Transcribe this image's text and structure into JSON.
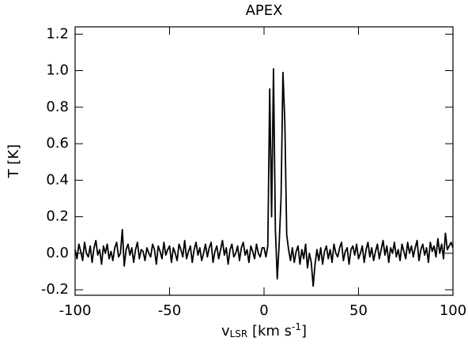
{
  "chart_data": {
    "type": "line",
    "title": "APEX",
    "ylabel": "T [K]",
    "xlabel": [
      "v",
      "LSR",
      " [km s",
      "-1",
      "]"
    ],
    "color": "#000000",
    "xlim": [
      -100,
      100
    ],
    "ylim": [
      -0.23,
      1.24
    ],
    "xticks": [
      -100,
      -50,
      0,
      50,
      100
    ],
    "yticks": [
      {
        "value": -0.2,
        "label": "-0.2"
      },
      {
        "value": 0,
        "label": "0.0"
      },
      {
        "value": 0.2,
        "label": "0.2"
      },
      {
        "value": 0.4,
        "label": "0.4"
      },
      {
        "value": 0.6,
        "label": "0.6"
      },
      {
        "value": 0.8,
        "label": "0.8"
      },
      {
        "value": 1.0,
        "label": "1.0"
      },
      {
        "value": 1.2,
        "label": "1.2"
      }
    ],
    "x": [
      -100,
      -99,
      -98,
      -97,
      -96,
      -95,
      -94,
      -93,
      -92,
      -91,
      -90,
      -89,
      -88,
      -87,
      -86,
      -85,
      -84,
      -83,
      -82,
      -81,
      -80,
      -79,
      -78,
      -77,
      -76,
      -75,
      -74,
      -73,
      -72,
      -71,
      -70,
      -69,
      -68,
      -67,
      -66,
      -65,
      -64,
      -63,
      -62,
      -61,
      -60,
      -59,
      -58,
      -57,
      -56,
      -55,
      -54,
      -53,
      -52,
      -51,
      -50,
      -49,
      -48,
      -47,
      -46,
      -45,
      -44,
      -43,
      -42,
      -41,
      -40,
      -39,
      -38,
      -37,
      -36,
      -35,
      -34,
      -33,
      -32,
      -31,
      -30,
      -29,
      -28,
      -27,
      -26,
      -25,
      -24,
      -23,
      -22,
      -21,
      -20,
      -19,
      -18,
      -17,
      -16,
      -15,
      -14,
      -13,
      -12,
      -11,
      -10,
      -9,
      -8,
      -7,
      -6,
      -5,
      -4,
      -3,
      -2,
      -1,
      0,
      1,
      2,
      3,
      4,
      5,
      6,
      7,
      8,
      9,
      10,
      11,
      12,
      13,
      14,
      15,
      16,
      17,
      18,
      19,
      20,
      21,
      22,
      23,
      24,
      25,
      26,
      27,
      28,
      29,
      30,
      31,
      32,
      33,
      34,
      35,
      36,
      37,
      38,
      39,
      40,
      41,
      42,
      43,
      44,
      45,
      46,
      47,
      48,
      49,
      50,
      51,
      52,
      53,
      54,
      55,
      56,
      57,
      58,
      59,
      60,
      61,
      62,
      63,
      64,
      65,
      66,
      67,
      68,
      69,
      70,
      71,
      72,
      73,
      74,
      75,
      76,
      77,
      78,
      79,
      80,
      81,
      82,
      83,
      84,
      85,
      86,
      87,
      88,
      89,
      90,
      91,
      92,
      93,
      94,
      95,
      96,
      97,
      98,
      99,
      100
    ],
    "values": [
      0.02,
      -0.03,
      0.05,
      0.01,
      -0.04,
      0.06,
      0.0,
      -0.02,
      0.04,
      -0.05,
      0.03,
      0.07,
      -0.01,
      0.02,
      -0.06,
      0.04,
      0.0,
      0.05,
      -0.03,
      0.01,
      -0.04,
      0.03,
      0.06,
      -0.02,
      0.0,
      0.13,
      -0.07,
      0.02,
      0.05,
      -0.01,
      0.03,
      -0.05,
      0.02,
      0.06,
      -0.03,
      0.02,
      0.01,
      -0.04,
      0.03,
      0.0,
      -0.02,
      0.05,
      0.02,
      -0.06,
      0.04,
      0.01,
      -0.03,
      0.06,
      -0.01,
      0.02,
      0.04,
      -0.05,
      0.03,
      0.0,
      -0.04,
      0.05,
      0.02,
      -0.02,
      0.07,
      -0.03,
      0.01,
      0.04,
      -0.05,
      0.02,
      0.06,
      -0.01,
      0.03,
      -0.04,
      0.0,
      0.05,
      -0.02,
      0.03,
      0.06,
      -0.05,
      0.01,
      0.04,
      -0.03,
      0.02,
      0.07,
      -0.01,
      0.03,
      -0.06,
      0.02,
      0.05,
      -0.02,
      0.0,
      0.04,
      -0.04,
      0.03,
      0.06,
      -0.01,
      0.02,
      -0.05,
      0.04,
      0.01,
      -0.03,
      0.05,
      0.0,
      -0.02,
      0.03,
      0.03,
      -0.02,
      0.04,
      0.9,
      0.2,
      1.01,
      0.13,
      -0.14,
      0.05,
      0.3,
      0.99,
      0.72,
      0.1,
      0.02,
      -0.04,
      0.03,
      -0.05,
      0.01,
      0.04,
      -0.06,
      0.02,
      -0.03,
      0.05,
      -0.08,
      0.0,
      -0.05,
      -0.18,
      -0.06,
      0.02,
      -0.04,
      0.03,
      -0.06,
      0.01,
      0.04,
      -0.03,
      0.02,
      -0.05,
      0.05,
      0.0,
      -0.02,
      0.03,
      0.06,
      -0.04,
      0.01,
      0.03,
      -0.06,
      0.02,
      0.04,
      -0.01,
      0.05,
      -0.03,
      0.0,
      0.04,
      -0.05,
      0.02,
      0.06,
      -0.02,
      0.03,
      -0.04,
      0.01,
      0.05,
      -0.03,
      0.02,
      0.07,
      -0.01,
      0.04,
      -0.05,
      0.03,
      0.0,
      0.06,
      -0.02,
      0.02,
      -0.04,
      0.05,
      0.01,
      -0.03,
      0.06,
      0.0,
      0.04,
      -0.02,
      0.03,
      0.07,
      -0.04,
      0.02,
      0.05,
      -0.01,
      0.03,
      -0.05,
      0.06,
      0.01,
      0.04,
      -0.02,
      0.08,
      0.0,
      0.05,
      -0.03,
      0.11,
      0.02,
      0.04,
      0.06,
      0.03
    ]
  }
}
